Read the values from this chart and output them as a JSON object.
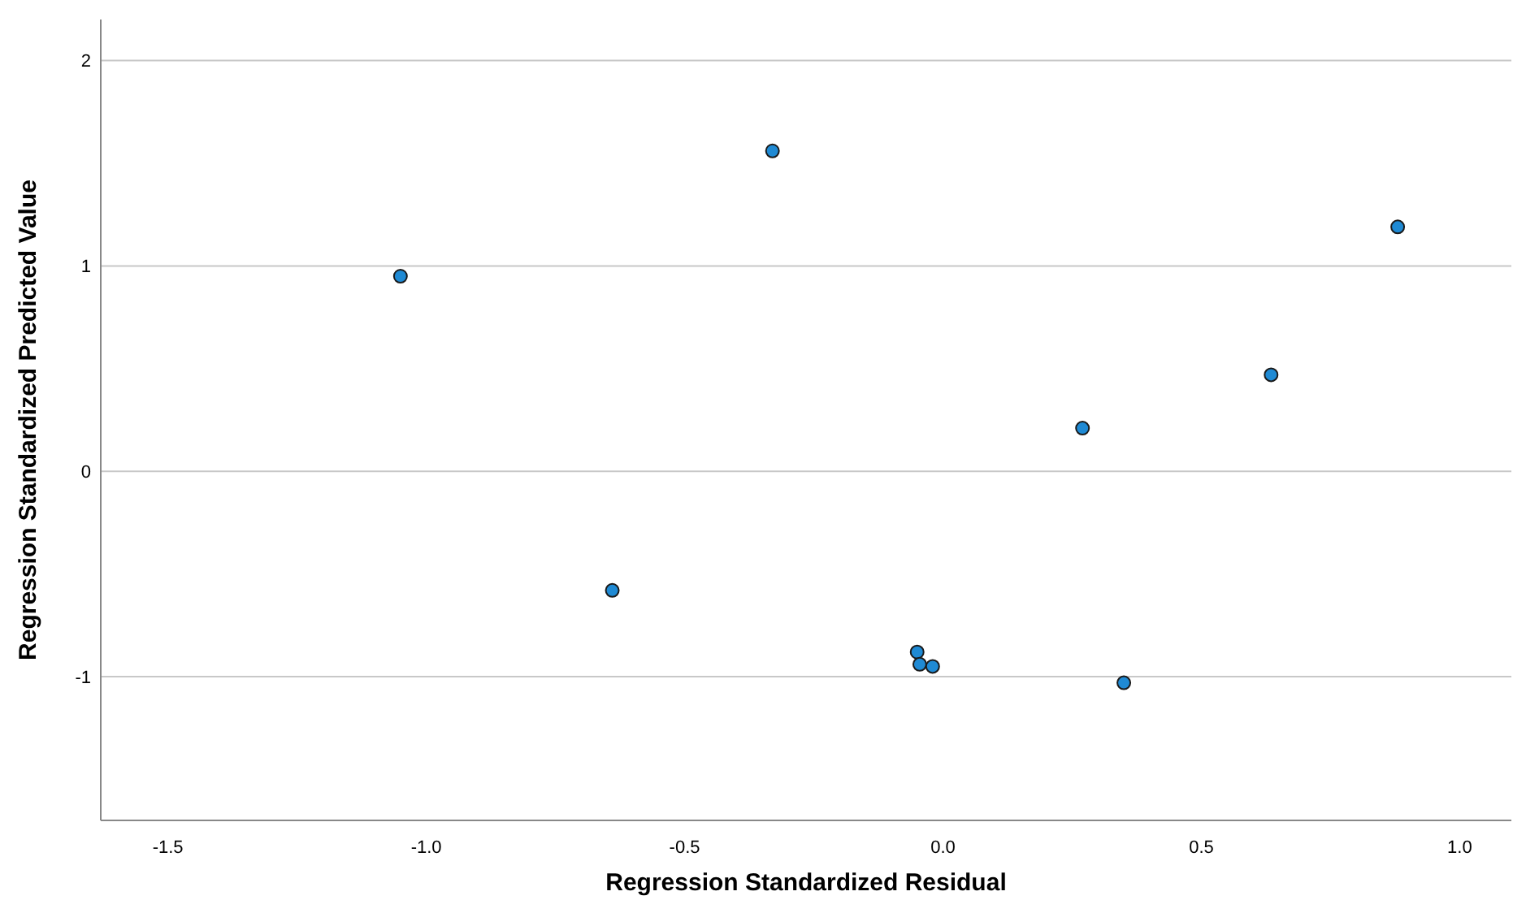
{
  "chart_data": {
    "type": "scatter",
    "xlabel": "Regression Standardized Residual",
    "ylabel": "Regression Standardized Predicted Value",
    "x": [
      -1.05,
      -0.33,
      -0.64,
      -0.05,
      -0.045,
      -0.02,
      0.27,
      0.35,
      0.635,
      0.88
    ],
    "series": [
      {
        "color": "#1f8ad4",
        "values": [
          0.95,
          1.56,
          -0.58,
          -0.88,
          -0.94,
          -0.95,
          0.21,
          -1.03,
          0.47,
          1.19
        ]
      }
    ],
    "xlim": [
      -1.63,
      1.1
    ],
    "ylim": [
      -1.7,
      2.2
    ],
    "xticks": [
      {
        "value": -1.5,
        "label": "-1.5"
      },
      {
        "value": -1,
        "label": "-1.0"
      },
      {
        "value": -0.5,
        "label": "-0.5"
      },
      {
        "value": 0,
        "label": "0.0"
      },
      {
        "value": 0.5,
        "label": "0.5"
      },
      {
        "value": 1,
        "label": "1.0"
      }
    ],
    "yticks": [
      -1,
      0,
      1,
      2
    ],
    "grid": "y",
    "marker": "circle"
  }
}
